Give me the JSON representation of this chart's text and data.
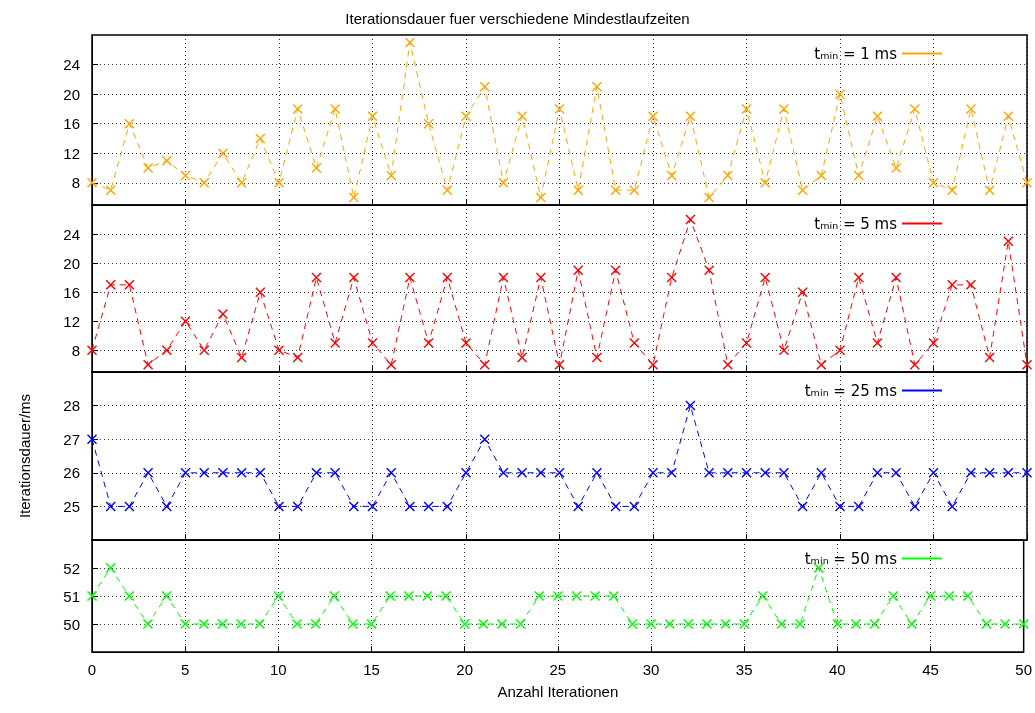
{
  "chart_data": [
    {
      "type": "line",
      "title": "Iterationsdauer fuer verschiedene Mindestlaufzeiten",
      "x": [
        0,
        1,
        2,
        3,
        4,
        5,
        6,
        7,
        8,
        9,
        10,
        11,
        12,
        13,
        14,
        15,
        16,
        17,
        18,
        19,
        20,
        21,
        22,
        23,
        24,
        25,
        26,
        27,
        28,
        29,
        30,
        31,
        32,
        33,
        34,
        35,
        36,
        37,
        38,
        39,
        40,
        41,
        42,
        43,
        44,
        45,
        46,
        47,
        48,
        49,
        50
      ],
      "series": [
        {
          "name": "tₘᵢₙ = 1 ms",
          "color": "#ffa500",
          "values": [
            8,
            7,
            16,
            10,
            11,
            9,
            8,
            12,
            8,
            14,
            8,
            18,
            10,
            18,
            6,
            17,
            9,
            27,
            16,
            7,
            17,
            21,
            8,
            17,
            6,
            18,
            7,
            21,
            7,
            7,
            17,
            9,
            17,
            6,
            9,
            18,
            8,
            18,
            7,
            9,
            20,
            9,
            17,
            10,
            18,
            8,
            7,
            18,
            7,
            17,
            8
          ]
        }
      ],
      "xlim": [
        0,
        50
      ],
      "xticks": [
        0,
        5,
        10,
        15,
        20,
        25,
        30,
        35,
        40,
        45,
        50
      ],
      "ylim": [
        5,
        28
      ],
      "yticks": [
        8,
        12,
        16,
        20,
        24
      ],
      "grid": true,
      "legend": "top right",
      "marker": "cross",
      "line_style": "dashed",
      "tick_labels": "y"
    },
    {
      "type": "line",
      "x": [
        0,
        1,
        2,
        3,
        4,
        5,
        6,
        7,
        8,
        9,
        10,
        11,
        12,
        13,
        14,
        15,
        16,
        17,
        18,
        19,
        20,
        21,
        22,
        23,
        24,
        25,
        26,
        27,
        28,
        29,
        30,
        31,
        32,
        33,
        34,
        35,
        36,
        37,
        38,
        39,
        40,
        41,
        42,
        43,
        44,
        45,
        46,
        47,
        48,
        49,
        50
      ],
      "series": [
        {
          "name": "tₘᵢₙ = 5 ms",
          "color": "#ff0000",
          "values": [
            8,
            17,
            17,
            6,
            8,
            12,
            8,
            13,
            7,
            16,
            8,
            7,
            18,
            9,
            18,
            9,
            6,
            18,
            9,
            18,
            9,
            6,
            18,
            7,
            18,
            6,
            19,
            7,
            19,
            9,
            6,
            18,
            26,
            19,
            6,
            9,
            18,
            8,
            16,
            6,
            8,
            18,
            9,
            18,
            6,
            9,
            17,
            17,
            7,
            23,
            6
          ]
        }
      ],
      "xlim": [
        0,
        50
      ],
      "xticks": [
        0,
        5,
        10,
        15,
        20,
        25,
        30,
        35,
        40,
        45,
        50
      ],
      "ylim": [
        5,
        28
      ],
      "yticks": [
        8,
        12,
        16,
        20,
        24
      ],
      "grid": true,
      "legend": "top right",
      "marker": "cross",
      "line_style": "dashed",
      "tick_labels": "y"
    },
    {
      "type": "line",
      "ylabel": "Iterationsdauer/ms",
      "x": [
        0,
        1,
        2,
        3,
        4,
        5,
        6,
        7,
        8,
        9,
        10,
        11,
        12,
        13,
        14,
        15,
        16,
        17,
        18,
        19,
        20,
        21,
        22,
        23,
        24,
        25,
        26,
        27,
        28,
        29,
        30,
        31,
        32,
        33,
        34,
        35,
        36,
        37,
        38,
        39,
        40,
        41,
        42,
        43,
        44,
        45,
        46,
        47,
        48,
        49,
        50
      ],
      "series": [
        {
          "name": "tₘᵢₙ = 25 ms",
          "color": "#0000ff",
          "values": [
            27,
            25,
            25,
            26,
            25,
            26,
            26,
            26,
            26,
            26,
            25,
            25,
            26,
            26,
            25,
            25,
            26,
            25,
            25,
            25,
            26,
            27,
            26,
            26,
            26,
            26,
            25,
            26,
            25,
            25,
            26,
            26,
            28,
            26,
            26,
            26,
            26,
            26,
            25,
            26,
            25,
            25,
            26,
            26,
            25,
            26,
            25,
            26,
            26,
            26,
            26
          ]
        }
      ],
      "xlim": [
        0,
        50
      ],
      "xticks": [
        0,
        5,
        10,
        15,
        20,
        25,
        30,
        35,
        40,
        45,
        50
      ],
      "ylim": [
        24,
        29
      ],
      "yticks": [
        25,
        26,
        27,
        28
      ],
      "grid": true,
      "legend": "top right",
      "marker": "cross",
      "line_style": "dashed",
      "tick_labels": "y"
    },
    {
      "type": "line",
      "xlabel": "Anzahl Iterationen",
      "x": [
        0,
        1,
        2,
        3,
        4,
        5,
        6,
        7,
        8,
        9,
        10,
        11,
        12,
        13,
        14,
        15,
        16,
        17,
        18,
        19,
        20,
        21,
        22,
        23,
        24,
        25,
        26,
        27,
        28,
        29,
        30,
        31,
        32,
        33,
        34,
        35,
        36,
        37,
        38,
        39,
        40,
        41,
        42,
        43,
        44,
        45,
        46,
        47,
        48,
        49,
        50
      ],
      "series": [
        {
          "name": "tₘᵢₙ = 50 ms",
          "color": "#00ff00",
          "values": [
            51,
            52,
            51,
            50,
            51,
            50,
            50,
            50,
            50,
            50,
            51,
            50,
            50,
            51,
            50,
            50,
            51,
            51,
            51,
            51,
            50,
            50,
            50,
            50,
            51,
            51,
            51,
            51,
            51,
            50,
            50,
            50,
            50,
            50,
            50,
            50,
            51,
            50,
            50,
            52,
            50,
            50,
            50,
            51,
            50,
            51,
            51,
            51,
            50,
            50,
            50
          ]
        }
      ],
      "xlim": [
        0,
        50
      ],
      "xticks": [
        0,
        5,
        10,
        15,
        20,
        25,
        30,
        35,
        40,
        45,
        50
      ],
      "ylim": [
        49,
        53
      ],
      "yticks": [
        50,
        51,
        52
      ],
      "grid": true,
      "legend": "top right",
      "marker": "cross",
      "line_style": "dashed"
    }
  ]
}
